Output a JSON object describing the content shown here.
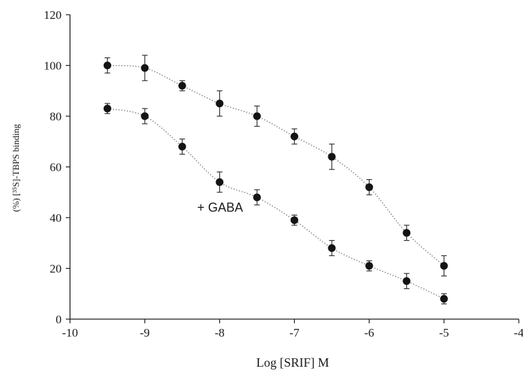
{
  "chart_data": {
    "type": "scatter",
    "title": "",
    "xlabel": "Log [SRIF] M",
    "ylabel": "(%) [³⁵S]-TBPS binding",
    "xlim": [
      -10,
      -4
    ],
    "ylim": [
      0,
      120
    ],
    "x_ticks": [
      "-10",
      "-9",
      "-8",
      "-7",
      "-6",
      "-5",
      "-4"
    ],
    "y_ticks": [
      "0",
      "20",
      "40",
      "60",
      "80",
      "100",
      "120"
    ],
    "grid": false,
    "x": [
      -9.5,
      -9,
      -8.5,
      -8,
      -7.5,
      -7,
      -6.5,
      -6,
      -5.5,
      -5
    ],
    "series": [
      {
        "values": [
          100,
          99,
          92,
          85,
          80,
          72,
          64,
          52,
          34,
          21
        ],
        "errors": [
          3,
          5,
          2,
          5,
          4,
          3,
          5,
          3,
          3,
          4
        ],
        "fit": "dotted"
      },
      {
        "values": [
          83,
          80,
          68,
          54,
          48,
          39,
          28,
          21,
          15,
          8
        ],
        "errors": [
          2,
          3,
          3,
          4,
          3,
          2,
          3,
          2,
          3,
          2
        ],
        "fit": "dotted"
      }
    ],
    "annotations": [
      {
        "text": "+ GABA",
        "x": -8.3,
        "y": 44
      }
    ],
    "colors": {
      "marker": "#141414",
      "axis": "#1a1a1a",
      "fit": "#8a8a8a"
    }
  }
}
